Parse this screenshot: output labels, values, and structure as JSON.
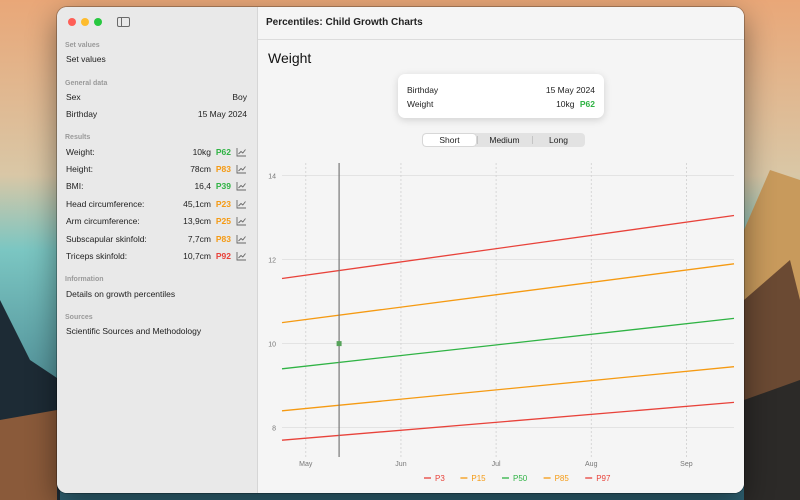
{
  "window": {
    "title": "Percentiles: Child Growth Charts"
  },
  "sidebar": {
    "sections": {
      "set_values": "Set values",
      "general": "General data",
      "results": "Results",
      "information": "Information",
      "sources": "Sources"
    },
    "set_values_item": "Set values",
    "general": [
      {
        "label": "Sex",
        "value": "Boy"
      },
      {
        "label": "Birthday",
        "value": "15 May 2024"
      }
    ],
    "results": [
      {
        "label": "Weight:",
        "value": "10kg",
        "percentile": "P62",
        "color": "#2fb344"
      },
      {
        "label": "Height:",
        "value": "78cm",
        "percentile": "P83",
        "color": "#f59a12"
      },
      {
        "label": "BMI:",
        "value": "16,4",
        "percentile": "P39",
        "color": "#2fb344"
      },
      {
        "label": "Head circumference:",
        "value": "45,1cm",
        "percentile": "P23",
        "color": "#f59a12"
      },
      {
        "label": "Arm circumference:",
        "value": "13,9cm",
        "percentile": "P25",
        "color": "#f59a12"
      },
      {
        "label": "Subscapular skinfold:",
        "value": "7,7cm",
        "percentile": "P83",
        "color": "#f59a12"
      },
      {
        "label": "Triceps skinfold:",
        "value": "10,7cm",
        "percentile": "P92",
        "color": "#e8423a"
      }
    ],
    "information_item": "Details on growth percentiles",
    "sources_item": "Scientific Sources and Methodology"
  },
  "main": {
    "title": "Weight",
    "card": {
      "birthday_label": "Birthday",
      "birthday_value": "15 May 2024",
      "weight_label": "Weight",
      "weight_value": "10kg",
      "weight_percentile": "P62",
      "percentile_color": "#2fb344"
    },
    "segments": [
      "Short",
      "Medium",
      "Long"
    ],
    "selected_segment": "Short"
  },
  "chart_data": {
    "type": "line",
    "title": "",
    "xlabel": "",
    "ylabel": "",
    "x_tick_labels": [
      "May",
      "Jun",
      "Jul",
      "Aug",
      "Sep"
    ],
    "x_ticks": [
      0.5,
      1.5,
      2.5,
      3.5,
      4.5
    ],
    "xlim": [
      0.25,
      5.0
    ],
    "ylim": [
      7.3,
      14.3
    ],
    "y_ticks": [
      8,
      10,
      12,
      14
    ],
    "x": [
      0.25,
      5.0
    ],
    "series": [
      {
        "name": "P3",
        "color": "#e8423a",
        "values": [
          7.7,
          8.6
        ]
      },
      {
        "name": "P15",
        "color": "#f59a12",
        "values": [
          8.4,
          9.45
        ]
      },
      {
        "name": "P50",
        "color": "#2fb344",
        "values": [
          9.4,
          10.6
        ]
      },
      {
        "name": "P85",
        "color": "#f59a12",
        "values": [
          10.5,
          11.9
        ]
      },
      {
        "name": "P97",
        "color": "#e8423a",
        "values": [
          11.55,
          13.05
        ]
      }
    ],
    "cursor_x": 0.85,
    "measurement": {
      "x": 0.85,
      "y": 10.0
    },
    "grid": true,
    "legend_position": "bottom"
  }
}
